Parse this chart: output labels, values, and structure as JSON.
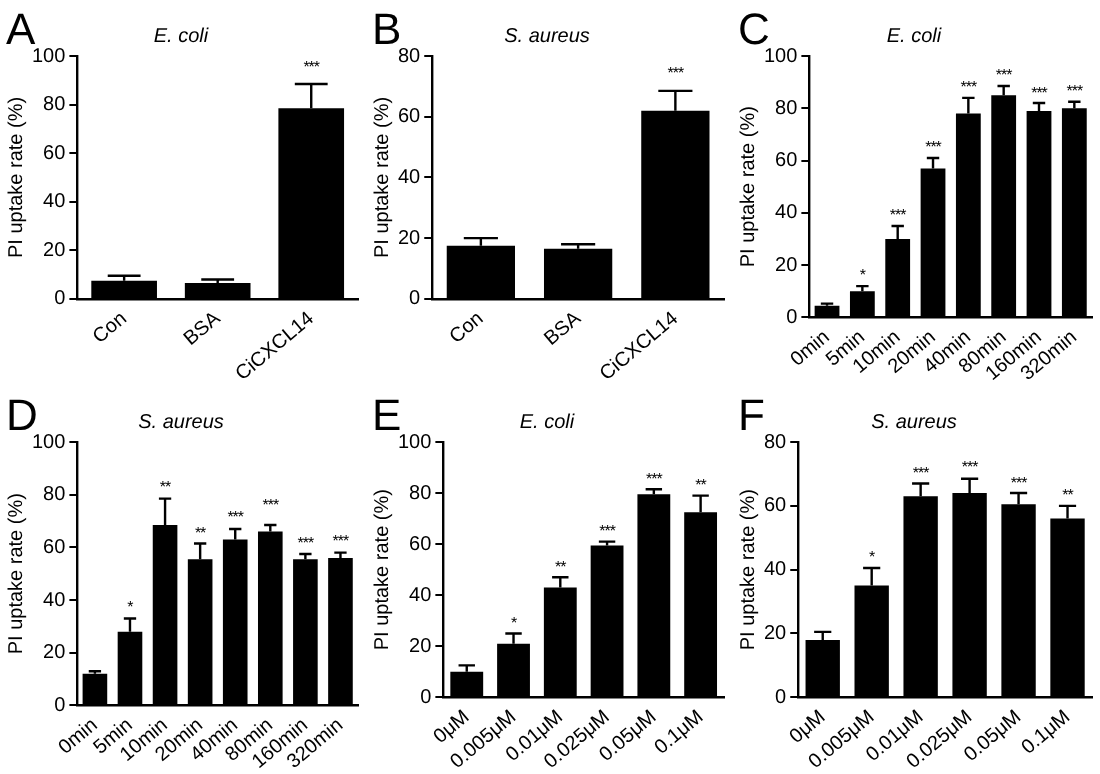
{
  "chart_data": [
    {
      "type": "bar",
      "title": "E. coli",
      "ylabel": "PI uptake rate (%)",
      "categories": [
        "Con",
        "BSA",
        "CiCXCL14"
      ],
      "series": [
        {
          "color": "#000000",
          "values": [
            7.5,
            6.5,
            78.5
          ],
          "errors": [
            [
              7.5,
              9.5
            ],
            [
              6.5,
              8
            ],
            [
              78.5,
              88.5
            ]
          ]
        }
      ],
      "ylim": [
        0,
        100
      ],
      "yticks": [
        0,
        20,
        40,
        60,
        80,
        100
      ],
      "grid": false,
      "legend": false,
      "annotations": [
        "A",
        {
          "text": "***",
          "x": "CiCXCL14",
          "y": 91
        }
      ]
    },
    {
      "type": "bar",
      "title": "S. aureus",
      "ylabel": "PI uptake rate (%)",
      "categories": [
        "Con",
        "BSA",
        "CiCXCL14"
      ],
      "series": [
        {
          "color": "#000000",
          "values": [
            17.5,
            16.5,
            62
          ],
          "errors": [
            [
              17.5,
              20
            ],
            [
              16.5,
              18
            ],
            [
              62,
              68.5
            ]
          ]
        }
      ],
      "ylim": [
        0,
        80
      ],
      "yticks": [
        0,
        20,
        40,
        60,
        80
      ],
      "grid": false,
      "legend": false,
      "annotations": [
        "B",
        {
          "text": "***",
          "x": "CiCXCL14",
          "y": 71
        }
      ]
    },
    {
      "type": "bar",
      "title": "E. coli",
      "ylabel": "PI uptake rate (%)",
      "categories": [
        "0min",
        "5min",
        "10min",
        "20min",
        "40min",
        "80min",
        "160min",
        "320min"
      ],
      "series": [
        {
          "color": "#000000",
          "values": [
            4.5,
            10,
            30,
            57,
            78,
            85,
            79,
            80
          ],
          "errors": [
            [
              4.5,
              5.3
            ],
            [
              10,
              12
            ],
            [
              30,
              35
            ],
            [
              57,
              61
            ],
            [
              78,
              84
            ],
            [
              85,
              88.5
            ],
            [
              79,
              82
            ],
            [
              80,
              82.5
            ]
          ]
        }
      ],
      "ylim": [
        0,
        100
      ],
      "yticks": [
        0,
        20,
        40,
        60,
        80,
        100
      ],
      "grid": false,
      "legend": false,
      "annotations": [
        "C",
        {
          "text": "*",
          "x": "5min",
          "y": 12
        },
        {
          "text": "***",
          "x": "10min",
          "y": 35
        },
        {
          "text": "***",
          "x": "20min",
          "y": 61
        },
        {
          "text": "***",
          "x": "40min",
          "y": 84
        },
        {
          "text": "***",
          "x": "80min",
          "y": 88.5
        },
        {
          "text": "***",
          "x": "160min",
          "y": 82
        },
        {
          "text": "***",
          "x": "320min",
          "y": 82.5
        }
      ]
    },
    {
      "type": "bar",
      "title": "S. aureus",
      "ylabel": "PI uptake rate (%)",
      "categories": [
        "0min",
        "5min",
        "10min",
        "20min",
        "40min",
        "80min",
        "160min",
        "320min"
      ],
      "series": [
        {
          "color": "#000000",
          "values": [
            12,
            28,
            68.5,
            55.5,
            63,
            66,
            55.5,
            56
          ],
          "errors": [
            [
              12,
              13
            ],
            [
              28,
              33
            ],
            [
              68.5,
              78.5
            ],
            [
              55.5,
              61.5
            ],
            [
              63,
              67
            ],
            [
              66,
              68.5
            ],
            [
              55.5,
              57.5
            ],
            [
              56,
              58
            ]
          ]
        }
      ],
      "ylim": [
        0,
        100
      ],
      "yticks": [
        0,
        20,
        40,
        60,
        80,
        100
      ],
      "grid": false,
      "legend": false,
      "annotations": [
        "D",
        {
          "text": "*",
          "x": "5min",
          "y": 33
        },
        {
          "text": "**",
          "x": "10min",
          "y": 78.5
        },
        {
          "text": "**",
          "x": "20min",
          "y": 61.5
        },
        {
          "text": "***",
          "x": "40min",
          "y": 67
        },
        {
          "text": "***",
          "x": "80min",
          "y": 72
        },
        {
          "text": "***",
          "x": "160min",
          "y": 57.5
        },
        {
          "text": "***",
          "x": "320min",
          "y": 58
        }
      ]
    },
    {
      "type": "bar",
      "title": "E. coli",
      "ylabel": "PI uptake rate (%)",
      "categories": [
        "0μM",
        "0.005μM",
        "0.01μM",
        "0.025μM",
        "0.05μM",
        "0.1μM"
      ],
      "series": [
        {
          "color": "#000000",
          "values": [
            10,
            21,
            43,
            59.5,
            79.5,
            72.5
          ],
          "errors": [
            [
              10,
              12.5
            ],
            [
              21,
              25
            ],
            [
              43,
              47
            ],
            [
              59.5,
              61
            ],
            [
              79.5,
              81.5
            ],
            [
              72.5,
              79
            ]
          ]
        }
      ],
      "ylim": [
        0,
        100
      ],
      "yticks": [
        0,
        20,
        40,
        60,
        80,
        100
      ],
      "grid": false,
      "legend": false,
      "annotations": [
        "E",
        {
          "text": "*",
          "x": "0.005μM",
          "y": 25
        },
        {
          "text": "**",
          "x": "0.01μM",
          "y": 47
        },
        {
          "text": "***",
          "x": "0.025μM",
          "y": 61
        },
        {
          "text": "***",
          "x": "0.05μM",
          "y": 81.5
        },
        {
          "text": "**",
          "x": "0.1μM",
          "y": 79
        }
      ]
    },
    {
      "type": "bar",
      "title": "S. aureus",
      "ylabel": "PI uptake rate (%)",
      "categories": [
        "0μM",
        "0.005μM",
        "0.01μM",
        "0.025μM",
        "0.05μM",
        "0.1μM"
      ],
      "series": [
        {
          "color": "#000000",
          "values": [
            18,
            35,
            63,
            64,
            60.5,
            56
          ],
          "errors": [
            [
              18,
              20.5
            ],
            [
              35,
              40.5
            ],
            [
              63,
              67
            ],
            [
              64,
              68.5
            ],
            [
              60.5,
              64
            ],
            [
              56,
              60
            ]
          ]
        }
      ],
      "ylim": [
        0,
        80
      ],
      "yticks": [
        0,
        20,
        40,
        60,
        80
      ],
      "grid": false,
      "legend": false,
      "annotations": [
        "F",
        {
          "text": "*",
          "x": "0.005μM",
          "y": 40.5
        },
        {
          "text": "***",
          "x": "0.01μM",
          "y": 67
        },
        {
          "text": "***",
          "x": "0.025μM",
          "y": 68.5
        },
        {
          "text": "***",
          "x": "0.05μM",
          "y": 64
        },
        {
          "text": "**",
          "x": "0.1μM",
          "y": 60
        }
      ]
    }
  ]
}
